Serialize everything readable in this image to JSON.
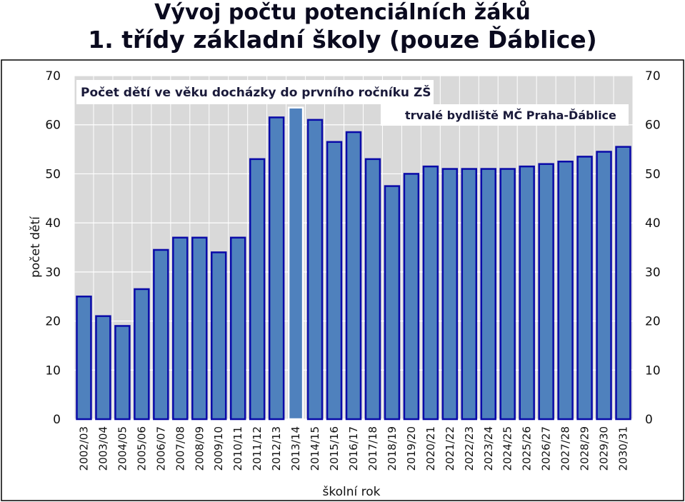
{
  "page": {
    "title_line1": "Vývoj počtu potenciálních žáků",
    "title_line2": "1. třídy základní školy (pouze Ďáblice)"
  },
  "chart_data": {
    "type": "bar",
    "title": "Počet dětí ve věku docházky do prvního ročníku ZŠ",
    "annotation": "trvalé bydliště MČ Praha-Ďáblice",
    "xlabel": "školní rok",
    "ylabel": "počet dětí",
    "ylim": [
      0,
      70
    ],
    "yticks": [
      0,
      10,
      20,
      30,
      40,
      50,
      60,
      70
    ],
    "grid": true,
    "highlight_category": "2013/14",
    "categories": [
      "2002/03",
      "2003/04",
      "2004/05",
      "2005/06",
      "2006/07",
      "2007/08",
      "2008/09",
      "2009/10",
      "2010/11",
      "2011/12",
      "2012/13",
      "2013/14",
      "2014/15",
      "2015/16",
      "2016/17",
      "2017/18",
      "2018/19",
      "2019/20",
      "2020/21",
      "2021/22",
      "2022/23",
      "2023/24",
      "2024/25",
      "2025/26",
      "2026/27",
      "2027/28",
      "2028/29",
      "2029/30",
      "2030/31"
    ],
    "values": [
      25,
      21,
      19,
      26.5,
      34.5,
      37,
      37,
      34,
      37,
      53,
      61.5,
      63.5,
      61,
      56.5,
      58.5,
      53,
      47.5,
      50,
      51.5,
      51,
      51,
      51,
      51,
      51.5,
      52,
      52.5,
      53.5,
      54.5,
      55.5
    ],
    "colors": {
      "bar_fill": "#4f81bd",
      "bar_stroke": "#0a0aa8",
      "highlight_fill": "#4f81bd",
      "highlight_stroke": "#ffffff",
      "plot_bg": "#d9d9d9",
      "grid": "#ffffff"
    }
  }
}
